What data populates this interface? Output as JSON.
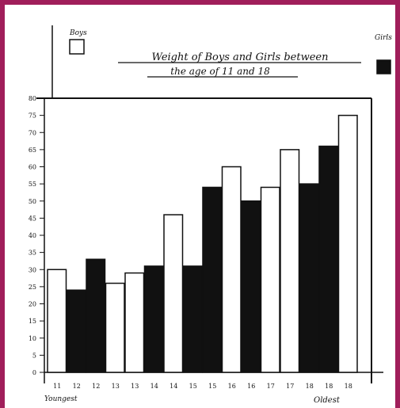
{
  "chart_data": {
    "type": "bar",
    "title": "Weight of Boys and Girls between the age of 11 and 18",
    "title_line1": "Weight of Boys and Girls between",
    "title_line2": "the age of 11 and 18",
    "legend": [
      {
        "name": "Boys",
        "color": "#ffffff"
      },
      {
        "name": "Girls",
        "color": "#111111"
      }
    ],
    "legend_placement": "top",
    "xlabel_left": "Youngest",
    "xlabel_right": "Oldest",
    "ylim": [
      0,
      80
    ],
    "yticks": [
      0,
      5,
      10,
      15,
      20,
      25,
      30,
      35,
      40,
      45,
      50,
      55,
      60,
      65,
      70,
      75,
      80
    ],
    "grid": false,
    "bars": [
      {
        "series": "Boys",
        "value": 30,
        "label": "11"
      },
      {
        "series": "Girls",
        "value": 24,
        "label": "12"
      },
      {
        "series": "Girls",
        "value": 33,
        "label": "12"
      },
      {
        "series": "Boys",
        "value": 26,
        "label": "13"
      },
      {
        "series": "Boys",
        "value": 29,
        "label": "13"
      },
      {
        "series": "Girls",
        "value": 31,
        "label": "14"
      },
      {
        "series": "Boys",
        "value": 46,
        "label": "14"
      },
      {
        "series": "Girls",
        "value": 31,
        "label": "15"
      },
      {
        "series": "Girls",
        "value": 54,
        "label": "15"
      },
      {
        "series": "Boys",
        "value": 60,
        "label": "16"
      },
      {
        "series": "Girls",
        "value": 50,
        "label": "16"
      },
      {
        "series": "Boys",
        "value": 54,
        "label": "17"
      },
      {
        "series": "Boys",
        "value": 65,
        "label": "17"
      },
      {
        "series": "Girls",
        "value": 55,
        "label": "18"
      },
      {
        "series": "Girls",
        "value": 66,
        "label": "18"
      },
      {
        "series": "Boys",
        "value": 75,
        "label": "18"
      }
    ]
  }
}
